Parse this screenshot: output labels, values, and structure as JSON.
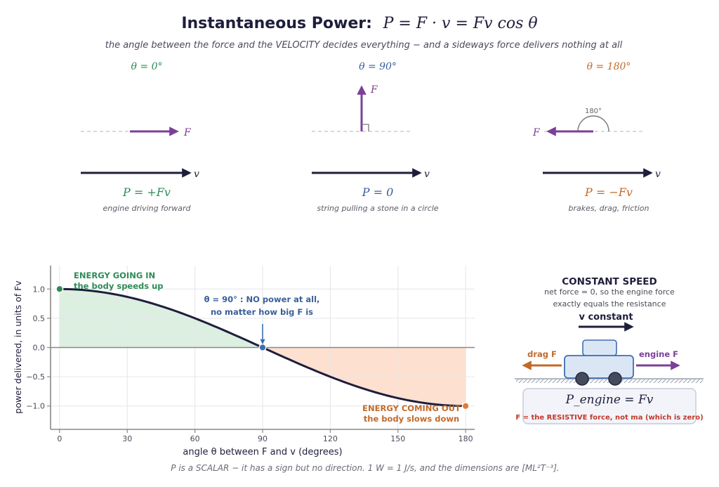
{
  "header": {
    "title": "Instantaneous Power:",
    "formula": "P = F · v = Fv cos θ",
    "subtitle": "the angle between the force and the VELOCITY decides everything − and a sideways force delivers nothing at all"
  },
  "cases": [
    {
      "angle_label": "θ = 0°",
      "power_label": "P = +Fv",
      "caption": "engine driving forward",
      "color": "#2e8b57"
    },
    {
      "angle_label": "θ = 90°",
      "power_label": "P = 0",
      "caption": "string pulling a stone in a circle",
      "color": "#3a5f9a"
    },
    {
      "angle_label": "θ = 180°",
      "power_label": "P = −Fv",
      "caption": "brakes, drag, friction",
      "color": "#c26a2a",
      "angle_mark": "180°"
    }
  ],
  "vector_labels": {
    "force": "F",
    "velocity": "v"
  },
  "colors": {
    "force": "#7b3f98",
    "velocity": "#1e1e3c",
    "positive_fill": "#dcefe0",
    "negative_fill": "#fde0cf",
    "curve": "#1e1e3c"
  },
  "chart_data": {
    "type": "line",
    "x": [
      0,
      10,
      20,
      30,
      40,
      50,
      60,
      70,
      80,
      90,
      100,
      110,
      120,
      130,
      140,
      150,
      160,
      170,
      180
    ],
    "y": [
      1.0,
      0.985,
      0.94,
      0.866,
      0.766,
      0.643,
      0.5,
      0.342,
      0.174,
      0.0,
      -0.174,
      -0.342,
      -0.5,
      -0.643,
      -0.766,
      -0.866,
      -0.94,
      -0.985,
      -1.0
    ],
    "xlabel": "angle θ between F and v   (degrees)",
    "ylabel": "power delivered, in units of Fv",
    "xticks": [
      0,
      30,
      60,
      90,
      120,
      150,
      180
    ],
    "yticks": [
      1.0,
      0.5,
      0.0,
      -0.5,
      -1.0
    ],
    "ytick_labels": [
      "1.0",
      "0.5",
      "0.0",
      "−0.5",
      "−1.0"
    ],
    "xlim": [
      -4,
      184
    ],
    "ylim": [
      -1.4,
      1.4
    ],
    "grid": true,
    "highlight_points": [
      {
        "x": 0,
        "y": 1.0,
        "color": "#2e8b57"
      },
      {
        "x": 90,
        "y": 0.0,
        "color": "#3a6fb0"
      },
      {
        "x": 180,
        "y": -1.0,
        "color": "#e07b3a"
      }
    ],
    "annotations": {
      "positive_line1": "ENERGY GOING IN",
      "positive_line2": "the body speeds up",
      "zero_line1": "θ = 90° : NO power at all,",
      "zero_line2": "no matter how big F is",
      "negative_line1": "ENERGY COMING OUT",
      "negative_line2": "the body slows down"
    }
  },
  "constant_speed": {
    "title": "CONSTANT SPEED",
    "line1": "net force = 0, so the engine force",
    "line2": "exactly equals the resistance",
    "v_label": "v constant",
    "drag_label": "drag F",
    "engine_label": "engine F",
    "formula": "P_engine = Fv",
    "note": "F = the RESISTIVE force, not ma (which is zero)"
  },
  "footer": "P is a SCALAR − it has a sign but no direction.  1 W = 1 J/s, and the dimensions are [ML²T⁻³]."
}
